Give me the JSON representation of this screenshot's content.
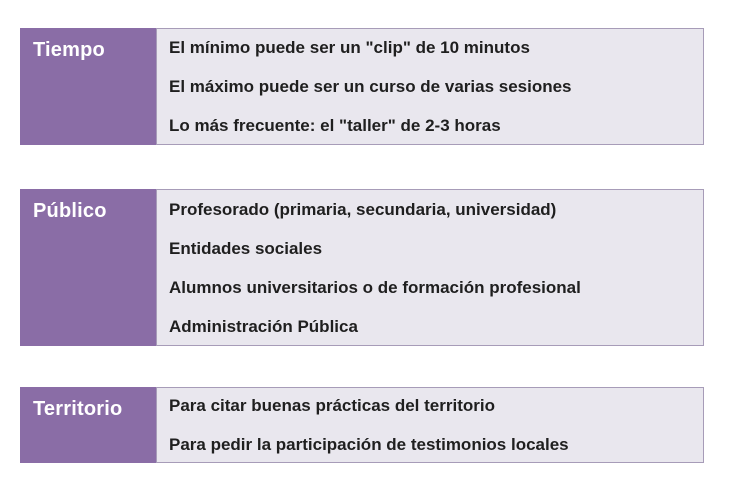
{
  "colors": {
    "label_bg": "#8a6da6",
    "label_text": "#ffffff",
    "content_bg": "#e9e7ee",
    "content_border": "#a79cb8",
    "content_text": "#1f1f1f",
    "page_bg": "#ffffff"
  },
  "sections": [
    {
      "label": "Tiempo",
      "items": [
        "El mínimo puede ser un \"clip\" de 10 minutos",
        "El máximo puede ser un curso de varias sesiones",
        "Lo más frecuente: el \"taller\" de 2-3 horas"
      ]
    },
    {
      "label": "Público",
      "items": [
        "Profesorado (primaria, secundaria, universidad)",
        "Entidades sociales",
        "Alumnos universitarios o de formación profesional",
        "Administración Pública"
      ]
    },
    {
      "label": "Territorio",
      "items": [
        "Para citar buenas prácticas del territorio",
        "Para pedir la participación de testimonios locales"
      ]
    }
  ]
}
